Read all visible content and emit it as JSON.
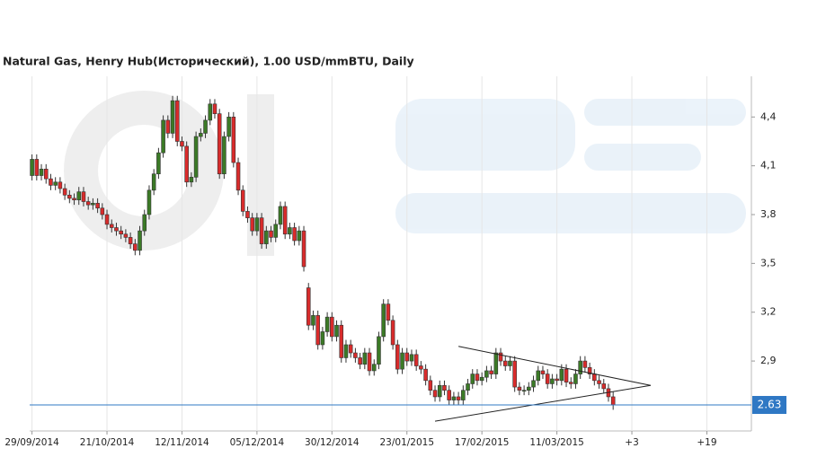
{
  "chart_data": {
    "type": "candlestick",
    "title": "Natural Gas, Henry Hub(Исторический), 1.00 USD/mmBTU, Daily",
    "up_color": "#3b7a26",
    "down_color": "#d92b2b",
    "grid": true,
    "categories": [
      "29/09/2014",
      null,
      null,
      null,
      null,
      null,
      null,
      null,
      null,
      null,
      null,
      null,
      null,
      null,
      null,
      null,
      "21/10/2014",
      null,
      null,
      null,
      null,
      null,
      null,
      null,
      null,
      null,
      null,
      null,
      null,
      null,
      null,
      null,
      "12/11/2014",
      null,
      null,
      null,
      null,
      null,
      null,
      null,
      null,
      null,
      null,
      null,
      null,
      null,
      null,
      null,
      "05/12/2014",
      null,
      null,
      null,
      null,
      null,
      null,
      null,
      null,
      null,
      null,
      null,
      null,
      null,
      null,
      null,
      "30/12/2014",
      null,
      null,
      null,
      null,
      null,
      null,
      null,
      null,
      null,
      null,
      null,
      null,
      null,
      null,
      null,
      "23/01/2015",
      null,
      null,
      null,
      null,
      null,
      null,
      null,
      null,
      null,
      null,
      null,
      null,
      null,
      null,
      null,
      "17/02/2015",
      null,
      null,
      null,
      null,
      null,
      null,
      null,
      null,
      null,
      null,
      null,
      null,
      null,
      null,
      null,
      "11/03/2015",
      null,
      null,
      null,
      null,
      null,
      null,
      null,
      null,
      null,
      null,
      null,
      null,
      null,
      null,
      null,
      "+3",
      null,
      null,
      null,
      null,
      null,
      null,
      null,
      null,
      null,
      null,
      null,
      null,
      null,
      null,
      null,
      "+19",
      null,
      null,
      null,
      null,
      null,
      null,
      null,
      null,
      null
    ],
    "open": [
      4.04,
      4.14,
      4.04,
      4.08,
      4.02,
      3.98,
      4.0,
      3.96,
      3.92,
      3.9,
      3.89,
      3.94,
      3.88,
      3.86,
      3.87,
      3.84,
      3.8,
      3.74,
      3.72,
      3.7,
      3.68,
      3.66,
      3.62,
      3.58,
      3.7,
      3.8,
      3.95,
      4.05,
      4.18,
      4.38,
      4.3,
      4.5,
      4.25,
      4.22,
      4.0,
      4.03,
      4.28,
      4.3,
      4.38,
      4.48,
      4.42,
      4.05,
      4.28,
      4.4,
      4.12,
      3.95,
      3.82,
      3.78,
      3.7,
      3.78,
      3.62,
      3.7,
      3.66,
      3.74,
      3.85,
      3.68,
      3.72,
      3.64,
      3.7,
      3.35,
      3.12,
      3.18,
      3.0,
      3.08,
      3.17,
      3.05,
      3.12,
      2.92,
      3.0,
      2.95,
      2.92,
      2.88,
      2.95,
      2.84,
      2.88,
      3.05,
      3.25,
      3.15,
      3.0,
      2.85,
      2.95,
      2.9,
      2.94,
      2.87,
      2.85,
      2.78,
      2.72,
      2.68,
      2.75,
      2.72,
      2.66,
      2.68,
      2.66,
      2.72,
      2.76,
      2.82,
      2.78,
      2.8,
      2.84,
      2.82,
      2.95,
      2.9,
      2.87,
      2.9,
      2.74,
      2.72,
      2.72,
      2.74,
      2.78,
      2.84,
      2.82,
      2.76,
      2.79,
      2.78,
      2.85,
      2.77,
      2.76,
      2.82,
      2.9,
      2.86,
      2.82,
      2.78,
      2.76,
      2.73,
      2.68,
      null,
      null,
      null,
      null,
      null,
      null,
      null,
      null,
      null,
      null,
      null,
      null,
      null,
      null,
      null,
      null,
      null,
      null,
      null,
      null,
      null,
      null,
      null,
      null,
      null,
      null,
      null,
      null,
      null
    ],
    "high": [
      4.17,
      4.17,
      4.11,
      4.11,
      4.05,
      4.03,
      4.03,
      3.99,
      3.95,
      3.93,
      3.97,
      3.97,
      3.91,
      3.9,
      3.9,
      3.87,
      3.83,
      3.77,
      3.75,
      3.73,
      3.71,
      3.69,
      3.65,
      3.73,
      3.83,
      3.98,
      4.08,
      4.21,
      4.41,
      4.41,
      4.53,
      4.53,
      4.28,
      4.25,
      4.06,
      4.31,
      4.33,
      4.41,
      4.51,
      4.51,
      4.45,
      4.31,
      4.43,
      4.43,
      4.15,
      3.98,
      3.85,
      3.81,
      3.81,
      3.81,
      3.73,
      3.73,
      3.77,
      3.88,
      3.88,
      3.75,
      3.75,
      3.73,
      3.73,
      3.38,
      3.21,
      3.21,
      3.11,
      3.2,
      3.2,
      3.15,
      3.15,
      3.03,
      3.03,
      2.98,
      2.95,
      2.98,
      2.98,
      2.91,
      3.08,
      3.28,
      3.28,
      3.18,
      3.03,
      2.98,
      2.98,
      2.97,
      2.97,
      2.9,
      2.88,
      2.81,
      2.75,
      2.78,
      2.78,
      2.75,
      2.71,
      2.71,
      2.75,
      2.79,
      2.85,
      2.85,
      2.83,
      2.87,
      2.87,
      2.98,
      2.98,
      2.93,
      2.93,
      2.93,
      2.77,
      2.75,
      2.77,
      2.81,
      2.87,
      2.87,
      2.85,
      2.82,
      2.82,
      2.88,
      2.88,
      2.8,
      2.85,
      2.93,
      2.93,
      2.89,
      2.85,
      2.81,
      2.79,
      2.76,
      2.71,
      null,
      null,
      null,
      null,
      null,
      null,
      null,
      null,
      null,
      null,
      null,
      null,
      null,
      null,
      null,
      null,
      null,
      null,
      null,
      null,
      null,
      null,
      null,
      null,
      null,
      null,
      null,
      null,
      null
    ],
    "low": [
      4.01,
      4.01,
      4.01,
      3.99,
      3.95,
      3.95,
      3.93,
      3.89,
      3.87,
      3.86,
      3.86,
      3.85,
      3.83,
      3.83,
      3.81,
      3.77,
      3.71,
      3.69,
      3.67,
      3.65,
      3.63,
      3.59,
      3.55,
      3.55,
      3.67,
      3.77,
      3.92,
      4.02,
      4.15,
      4.27,
      4.27,
      4.22,
      4.19,
      3.97,
      3.97,
      4.0,
      4.25,
      4.27,
      4.35,
      4.39,
      4.02,
      4.02,
      4.25,
      4.09,
      3.92,
      3.79,
      3.75,
      3.67,
      3.67,
      3.59,
      3.59,
      3.63,
      3.63,
      3.71,
      3.65,
      3.65,
      3.61,
      3.61,
      3.45,
      3.09,
      3.09,
      2.97,
      2.97,
      3.05,
      3.02,
      3.02,
      2.89,
      2.89,
      2.92,
      2.89,
      2.85,
      2.85,
      2.81,
      2.81,
      2.85,
      3.02,
      3.12,
      2.97,
      2.82,
      2.82,
      2.87,
      2.87,
      2.84,
      2.82,
      2.75,
      2.69,
      2.65,
      2.65,
      2.69,
      2.63,
      2.63,
      2.63,
      2.63,
      2.69,
      2.73,
      2.75,
      2.75,
      2.77,
      2.79,
      2.79,
      2.87,
      2.84,
      2.84,
      2.71,
      2.69,
      2.69,
      2.69,
      2.71,
      2.75,
      2.79,
      2.73,
      2.73,
      2.75,
      2.75,
      2.74,
      2.73,
      2.73,
      2.79,
      2.83,
      2.79,
      2.75,
      2.73,
      2.7,
      2.65,
      2.6,
      null,
      null,
      null,
      null,
      null,
      null,
      null,
      null,
      null,
      null,
      null,
      null,
      null,
      null,
      null,
      null,
      null,
      null,
      null,
      null,
      null,
      null,
      null,
      null,
      null,
      null,
      null,
      null,
      null
    ],
    "close": [
      4.14,
      4.04,
      4.08,
      4.02,
      3.98,
      4.0,
      3.96,
      3.92,
      3.9,
      3.89,
      3.94,
      3.88,
      3.86,
      3.87,
      3.84,
      3.8,
      3.74,
      3.72,
      3.7,
      3.68,
      3.66,
      3.62,
      3.58,
      3.7,
      3.8,
      3.95,
      4.05,
      4.18,
      4.38,
      4.3,
      4.5,
      4.25,
      4.22,
      4.0,
      4.03,
      4.28,
      4.3,
      4.38,
      4.48,
      4.42,
      4.05,
      4.28,
      4.4,
      4.12,
      3.95,
      3.82,
      3.78,
      3.7,
      3.78,
      3.62,
      3.7,
      3.66,
      3.74,
      3.85,
      3.68,
      3.72,
      3.64,
      3.7,
      3.48,
      3.12,
      3.18,
      3.0,
      3.08,
      3.17,
      3.05,
      3.12,
      2.92,
      3.0,
      2.95,
      2.92,
      2.88,
      2.95,
      2.84,
      2.88,
      3.05,
      3.25,
      3.15,
      3.0,
      2.85,
      2.95,
      2.9,
      2.94,
      2.87,
      2.85,
      2.78,
      2.72,
      2.68,
      2.75,
      2.72,
      2.66,
      2.68,
      2.66,
      2.72,
      2.76,
      2.82,
      2.78,
      2.8,
      2.84,
      2.82,
      2.95,
      2.9,
      2.87,
      2.9,
      2.74,
      2.72,
      2.72,
      2.74,
      2.78,
      2.84,
      2.82,
      2.76,
      2.79,
      2.78,
      2.85,
      2.77,
      2.76,
      2.82,
      2.9,
      2.86,
      2.82,
      2.78,
      2.76,
      2.73,
      2.68,
      2.63,
      null,
      null,
      null,
      null,
      null,
      null,
      null,
      null,
      null,
      null,
      null,
      null,
      null,
      null,
      null,
      null,
      null,
      null,
      null,
      null,
      null,
      null,
      null,
      null,
      null,
      null,
      null,
      null,
      null
    ],
    "ylim": [
      2.47,
      4.65
    ],
    "yticks": [
      {
        "value": 2.9,
        "label": "2,9"
      },
      {
        "value": 3.2,
        "label": "3,2"
      },
      {
        "value": 3.5,
        "label": "3,5"
      },
      {
        "value": 3.8,
        "label": "3,8"
      },
      {
        "value": 4.1,
        "label": "4,1"
      },
      {
        "value": 4.4,
        "label": "4,4"
      }
    ],
    "last_price": {
      "value": 2.63,
      "color": "#2f78c4"
    },
    "trendlines": [
      {
        "start": {
          "x": 91,
          "y": 2.99
        },
        "end": {
          "x": 132,
          "y": 2.75
        }
      },
      {
        "start": {
          "x": 86,
          "y": 2.53
        },
        "end": {
          "x": 132,
          "y": 2.75
        }
      }
    ]
  }
}
